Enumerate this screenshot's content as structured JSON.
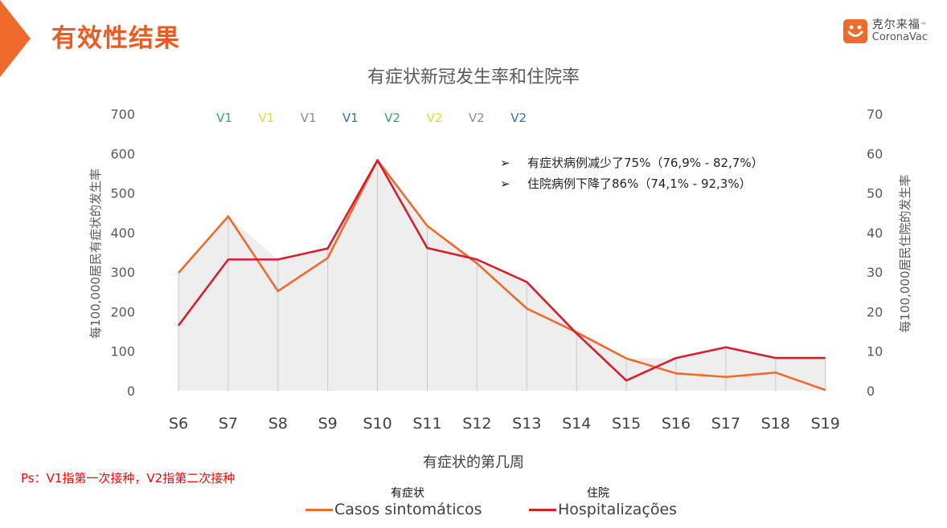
{
  "header": {
    "title": "有效性结果",
    "logo_cn": "克尔来福",
    "logo_tm": "™",
    "logo_en": "CoronaVac",
    "accent_color": "#ee6a2d"
  },
  "chart_data": {
    "type": "line",
    "title": "有症状新冠发生率和住院率",
    "xlabel": "有症状的第几周",
    "ylabel_left": "每100,000居民有症状的发生率",
    "ylabel_right": "每100,000居民住院的发生率",
    "categories": [
      "S6",
      "S7",
      "S8",
      "S9",
      "S10",
      "S11",
      "S12",
      "S13",
      "S14",
      "S15",
      "S16",
      "S17",
      "S18",
      "S19"
    ],
    "ylim_left": [
      0,
      700
    ],
    "ylim_right": [
      0,
      70
    ],
    "yticks_left": [
      "0",
      "100",
      "200",
      "300",
      "400",
      "500",
      "600",
      "700"
    ],
    "yticks_right": [
      "0",
      "10",
      "20",
      "30",
      "40",
      "50",
      "60",
      "70"
    ],
    "grid": false,
    "series": [
      {
        "name": "Casos sintomáticos",
        "name_cn": "有症状",
        "axis": "left",
        "color": "#ee6a2d",
        "values": [
          298,
          441,
          252,
          336,
          583,
          417,
          322,
          208,
          148,
          82,
          44,
          35,
          46,
          2
        ]
      },
      {
        "name": "Hospitalizações",
        "name_cn": "住院",
        "axis": "right",
        "color": "#d31f2f",
        "values": [
          16.5,
          33.2,
          33.2,
          36.0,
          58.3,
          36.1,
          33.2,
          27.5,
          14.5,
          2.6,
          8.3,
          11.0,
          8.3,
          8.3
        ]
      }
    ],
    "vaccination_markers": [
      {
        "label": "V1",
        "color": "#3aa564"
      },
      {
        "label": "V1",
        "color": "#e6d532"
      },
      {
        "label": "V1",
        "color": "#8c8c8c"
      },
      {
        "label": "V1",
        "color": "#2e74b5"
      },
      {
        "label": "V2",
        "color": "#3aa564"
      },
      {
        "label": "V2",
        "color": "#e6d532"
      },
      {
        "label": "V2",
        "color": "#8c8c8c"
      },
      {
        "label": "V2",
        "color": "#2e74b5"
      }
    ],
    "annotations": [
      "有症状病例减少了75%（76,9% - 82,7%）",
      "住院病例下降了86%（74,1% - 92,3%）"
    ],
    "annotation_bullet": "➢",
    "area_fill_color": "#eeeeee",
    "legend_position": "bottom"
  },
  "footnote": "Ps：V1指第一次接种，V2指第二次接种"
}
